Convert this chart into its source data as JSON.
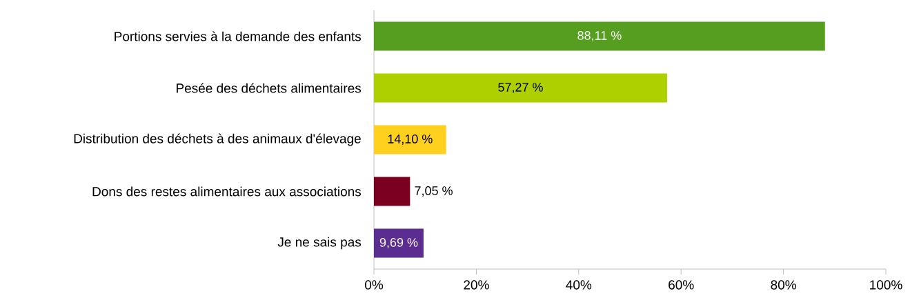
{
  "chart_data": {
    "type": "bar",
    "orientation": "horizontal",
    "categories": [
      "Portions servies à la demande des enfants",
      "Pesée des déchets alimentaires",
      "Distribution des déchets à des animaux d'élevage",
      "Dons des restes alimentaires aux associations",
      "Je ne sais pas"
    ],
    "values": [
      88.11,
      57.27,
      14.1,
      7.05,
      9.69
    ],
    "value_labels": [
      "88,11 %",
      "57,27 %",
      "14,10 %",
      "7,05 %",
      "9,69 %"
    ],
    "colors": [
      "#559e1f",
      "#afd000",
      "#ffd01e",
      "#7b0020",
      "#5c2d91"
    ],
    "xlim": [
      0,
      100
    ],
    "xticks": [
      {
        "value": 0,
        "label": "0%"
      },
      {
        "value": 20,
        "label": "20%"
      },
      {
        "value": 40,
        "label": "40%"
      },
      {
        "value": 60,
        "label": "60%"
      },
      {
        "value": 80,
        "label": "80%"
      },
      {
        "value": 100,
        "label": "100%"
      }
    ],
    "grid": false,
    "legend": false
  }
}
